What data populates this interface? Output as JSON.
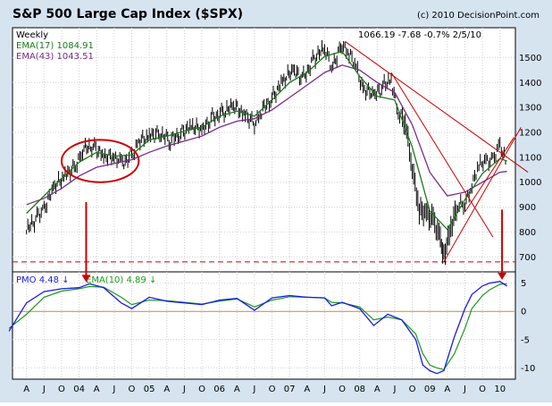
{
  "header": {
    "title": "S&P 500 Large Cap Index ($SPX)",
    "copyright": "(c) 2010 DecisionPoint.com",
    "period": "Weekly",
    "quote": "1066.19  -7.68  -0.7%  2/5/10"
  },
  "colors": {
    "outer_bg": "#d6e4f0",
    "panel_bg": "#ffffff",
    "price_bar": "#000000",
    "ema17": "#1a7a1a",
    "ema43": "#7a2a8a",
    "trendline": "#cc0000",
    "pmo": "#1a1aee",
    "pmo_ema": "#1a9a1a",
    "zero_line": "#c08a3a"
  },
  "chart_data": [
    {
      "type": "line",
      "name": "price",
      "ylim": [
        640,
        1620
      ],
      "yticks": [
        700,
        800,
        900,
        1000,
        1100,
        1200,
        1300,
        1400,
        1500
      ],
      "series": [
        {
          "name": "EMA(17)",
          "legend_value": "1084.91",
          "points": [
            [
              2003.25,
              875
            ],
            [
              2003.5,
              945
            ],
            [
              2003.75,
              1015
            ],
            [
              2004.0,
              1080
            ],
            [
              2004.25,
              1120
            ],
            [
              2004.5,
              1105
            ],
            [
              2004.75,
              1110
            ],
            [
              2005.0,
              1170
            ],
            [
              2005.25,
              1185
            ],
            [
              2005.5,
              1205
            ],
            [
              2005.75,
              1220
            ],
            [
              2006.0,
              1265
            ],
            [
              2006.25,
              1285
            ],
            [
              2006.5,
              1265
            ],
            [
              2006.75,
              1330
            ],
            [
              2007.0,
              1400
            ],
            [
              2007.25,
              1440
            ],
            [
              2007.5,
              1505
            ],
            [
              2007.75,
              1525
            ],
            [
              2008.0,
              1425
            ],
            [
              2008.25,
              1345
            ],
            [
              2008.5,
              1330
            ],
            [
              2008.75,
              1140
            ],
            [
              2009.0,
              885
            ],
            [
              2009.25,
              810
            ],
            [
              2009.5,
              930
            ],
            [
              2009.75,
              1035
            ],
            [
              2010.0,
              1095
            ],
            [
              2010.1,
              1085
            ]
          ]
        },
        {
          "name": "EMA(43)",
          "legend_value": "1043.51",
          "points": [
            [
              2003.25,
              910
            ],
            [
              2003.5,
              935
            ],
            [
              2003.75,
              975
            ],
            [
              2004.0,
              1025
            ],
            [
              2004.25,
              1060
            ],
            [
              2004.5,
              1075
            ],
            [
              2004.75,
              1090
            ],
            [
              2005.0,
              1120
            ],
            [
              2005.25,
              1145
            ],
            [
              2005.5,
              1165
            ],
            [
              2005.75,
              1185
            ],
            [
              2006.0,
              1220
            ],
            [
              2006.25,
              1245
            ],
            [
              2006.5,
              1255
            ],
            [
              2006.75,
              1290
            ],
            [
              2007.0,
              1340
            ],
            [
              2007.25,
              1390
            ],
            [
              2007.5,
              1440
            ],
            [
              2007.75,
              1470
            ],
            [
              2008.0,
              1450
            ],
            [
              2008.25,
              1400
            ],
            [
              2008.5,
              1360
            ],
            [
              2008.75,
              1230
            ],
            [
              2009.0,
              1040
            ],
            [
              2009.25,
              945
            ],
            [
              2009.5,
              960
            ],
            [
              2009.75,
              1000
            ],
            [
              2010.0,
              1040
            ],
            [
              2010.1,
              1043
            ]
          ]
        }
      ],
      "price": [
        [
          2003.25,
          800
        ],
        [
          2003.4,
          860
        ],
        [
          2003.5,
          900
        ],
        [
          2003.65,
          975
        ],
        [
          2003.8,
          1030
        ],
        [
          2003.95,
          1070
        ],
        [
          2004.05,
          1125
        ],
        [
          2004.2,
          1150
        ],
        [
          2004.35,
          1110
        ],
        [
          2004.5,
          1090
        ],
        [
          2004.6,
          1075
        ],
        [
          2004.75,
          1110
        ],
        [
          2004.85,
          1155
        ],
        [
          2005.0,
          1190
        ],
        [
          2005.15,
          1200
        ],
        [
          2005.3,
          1160
        ],
        [
          2005.45,
          1200
        ],
        [
          2005.6,
          1230
        ],
        [
          2005.75,
          1200
        ],
        [
          2005.9,
          1260
        ],
        [
          2006.05,
          1280
        ],
        [
          2006.2,
          1300
        ],
        [
          2006.35,
          1280
        ],
        [
          2006.5,
          1240
        ],
        [
          2006.6,
          1280
        ],
        [
          2006.75,
          1340
        ],
        [
          2006.9,
          1410
        ],
        [
          2007.05,
          1440
        ],
        [
          2007.2,
          1420
        ],
        [
          2007.35,
          1500
        ],
        [
          2007.5,
          1530
        ],
        [
          2007.6,
          1460
        ],
        [
          2007.75,
          1560
        ],
        [
          2007.85,
          1510
        ],
        [
          2007.95,
          1460
        ],
        [
          2008.05,
          1380
        ],
        [
          2008.2,
          1340
        ],
        [
          2008.35,
          1390
        ],
        [
          2008.45,
          1420
        ],
        [
          2008.55,
          1270
        ],
        [
          2008.65,
          1240
        ],
        [
          2008.75,
          1070
        ],
        [
          2008.85,
          880
        ],
        [
          2008.95,
          870
        ],
        [
          2009.05,
          860
        ],
        [
          2009.15,
          760
        ],
        [
          2009.2,
          700
        ],
        [
          2009.3,
          830
        ],
        [
          2009.4,
          900
        ],
        [
          2009.5,
          910
        ],
        [
          2009.6,
          1000
        ],
        [
          2009.7,
          1060
        ],
        [
          2009.8,
          1080
        ],
        [
          2009.9,
          1100
        ],
        [
          2010.0,
          1140
        ],
        [
          2010.1,
          1066
        ]
      ],
      "price_line": {
        "value": 680
      },
      "trendlines": [
        [
          [
            2007.79,
            1565
          ],
          [
            2010.4,
            1040
          ]
        ],
        [
          [
            2008.45,
            1440
          ],
          [
            2009.9,
            780
          ]
        ],
        [
          [
            2009.2,
            680
          ],
          [
            2010.3,
            1220
          ]
        ],
        [
          [
            2009.5,
            880
          ],
          [
            2010.2,
            1180
          ]
        ]
      ]
    },
    {
      "type": "line",
      "name": "pmo",
      "ylim": [
        -12,
        7
      ],
      "yticks": [
        -10,
        -5,
        0,
        5
      ],
      "series": [
        {
          "name": "PMO",
          "legend_value": "4.48",
          "legend_arrow": "↓",
          "points": [
            [
              2003.0,
              -3.5
            ],
            [
              2003.25,
              1.5
            ],
            [
              2003.5,
              3.5
            ],
            [
              2003.75,
              4
            ],
            [
              2004.0,
              4.2
            ],
            [
              2004.15,
              4.9
            ],
            [
              2004.35,
              4.2
            ],
            [
              2004.6,
              1.5
            ],
            [
              2004.75,
              0.5
            ],
            [
              2005.0,
              2.5
            ],
            [
              2005.25,
              1.8
            ],
            [
              2005.5,
              1.5
            ],
            [
              2005.75,
              1.2
            ],
            [
              2006.0,
              2.0
            ],
            [
              2006.25,
              2.3
            ],
            [
              2006.5,
              0.2
            ],
            [
              2006.75,
              2.4
            ],
            [
              2007.0,
              2.8
            ],
            [
              2007.25,
              2.5
            ],
            [
              2007.5,
              2.4
            ],
            [
              2007.6,
              1.0
            ],
            [
              2007.75,
              1.6
            ],
            [
              2008.0,
              0.5
            ],
            [
              2008.2,
              -2.5
            ],
            [
              2008.4,
              -0.5
            ],
            [
              2008.6,
              -1.5
            ],
            [
              2008.8,
              -5
            ],
            [
              2008.9,
              -9.5
            ],
            [
              2009.0,
              -10.5
            ],
            [
              2009.1,
              -11.0
            ],
            [
              2009.2,
              -10.5
            ],
            [
              2009.35,
              -4.5
            ],
            [
              2009.5,
              0.5
            ],
            [
              2009.6,
              3.0
            ],
            [
              2009.75,
              4.5
            ],
            [
              2009.85,
              5.0
            ],
            [
              2010.0,
              5.3
            ],
            [
              2010.1,
              4.48
            ]
          ]
        },
        {
          "name": "EMA(10)",
          "legend_value": "4.89",
          "legend_arrow": "↓",
          "points": [
            [
              2003.0,
              -3.0
            ],
            [
              2003.25,
              -0.5
            ],
            [
              2003.5,
              2.5
            ],
            [
              2003.75,
              3.6
            ],
            [
              2004.0,
              4.0
            ],
            [
              2004.15,
              4.4
            ],
            [
              2004.35,
              4.3
            ],
            [
              2004.6,
              2.5
            ],
            [
              2004.75,
              1.2
            ],
            [
              2005.0,
              2.0
            ],
            [
              2005.25,
              1.9
            ],
            [
              2005.5,
              1.6
            ],
            [
              2005.75,
              1.3
            ],
            [
              2006.0,
              1.8
            ],
            [
              2006.25,
              2.2
            ],
            [
              2006.5,
              0.8
            ],
            [
              2006.75,
              2.0
            ],
            [
              2007.0,
              2.6
            ],
            [
              2007.25,
              2.5
            ],
            [
              2007.5,
              2.4
            ],
            [
              2007.6,
              1.6
            ],
            [
              2007.75,
              1.5
            ],
            [
              2008.0,
              0.8
            ],
            [
              2008.2,
              -1.5
            ],
            [
              2008.4,
              -1.0
            ],
            [
              2008.6,
              -1.5
            ],
            [
              2008.8,
              -4
            ],
            [
              2008.9,
              -7.5
            ],
            [
              2009.0,
              -9.5
            ],
            [
              2009.1,
              -10.0
            ],
            [
              2009.2,
              -10.3
            ],
            [
              2009.35,
              -7.5
            ],
            [
              2009.5,
              -3.0
            ],
            [
              2009.6,
              0.5
            ],
            [
              2009.75,
              2.8
            ],
            [
              2009.85,
              3.8
            ],
            [
              2010.0,
              4.8
            ],
            [
              2010.1,
              4.89
            ]
          ]
        }
      ],
      "zero_line": 0
    }
  ],
  "x_axis": {
    "xlim": [
      2003.05,
      2010.22
    ],
    "ticks": [
      {
        "label": "A",
        "x": 2003.25
      },
      {
        "label": "J",
        "x": 2003.5
      },
      {
        "label": "O",
        "x": 2003.75
      },
      {
        "label": "04",
        "x": 2004.0
      },
      {
        "label": "A",
        "x": 2004.25
      },
      {
        "label": "J",
        "x": 2004.5
      },
      {
        "label": "O",
        "x": 2004.75
      },
      {
        "label": "05",
        "x": 2005.0
      },
      {
        "label": "A",
        "x": 2005.25
      },
      {
        "label": "J",
        "x": 2005.5
      },
      {
        "label": "O",
        "x": 2005.75
      },
      {
        "label": "06",
        "x": 2006.0
      },
      {
        "label": "A",
        "x": 2006.25
      },
      {
        "label": "J",
        "x": 2006.5
      },
      {
        "label": "O",
        "x": 2006.75
      },
      {
        "label": "07",
        "x": 2007.0
      },
      {
        "label": "A",
        "x": 2007.25
      },
      {
        "label": "J",
        "x": 2007.5
      },
      {
        "label": "O",
        "x": 2007.75
      },
      {
        "label": "08",
        "x": 2008.0
      },
      {
        "label": "A",
        "x": 2008.25
      },
      {
        "label": "J",
        "x": 2008.5
      },
      {
        "label": "O",
        "x": 2008.75
      },
      {
        "label": "09",
        "x": 2009.0
      },
      {
        "label": "A",
        "x": 2009.25
      },
      {
        "label": "J",
        "x": 2009.5
      },
      {
        "label": "O",
        "x": 2009.75
      },
      {
        "label": "10",
        "x": 2010.0
      }
    ]
  },
  "annotations": {
    "ellipse": {
      "x": [
        2003.75,
        2004.85
      ],
      "y": [
        1170,
        1000
      ]
    },
    "arrows": [
      {
        "x": 2004.1,
        "y_from": 920,
        "y_to": 5.2
      },
      {
        "x": 2010.03,
        "y_from": 890,
        "y_to": 5.6
      }
    ]
  }
}
